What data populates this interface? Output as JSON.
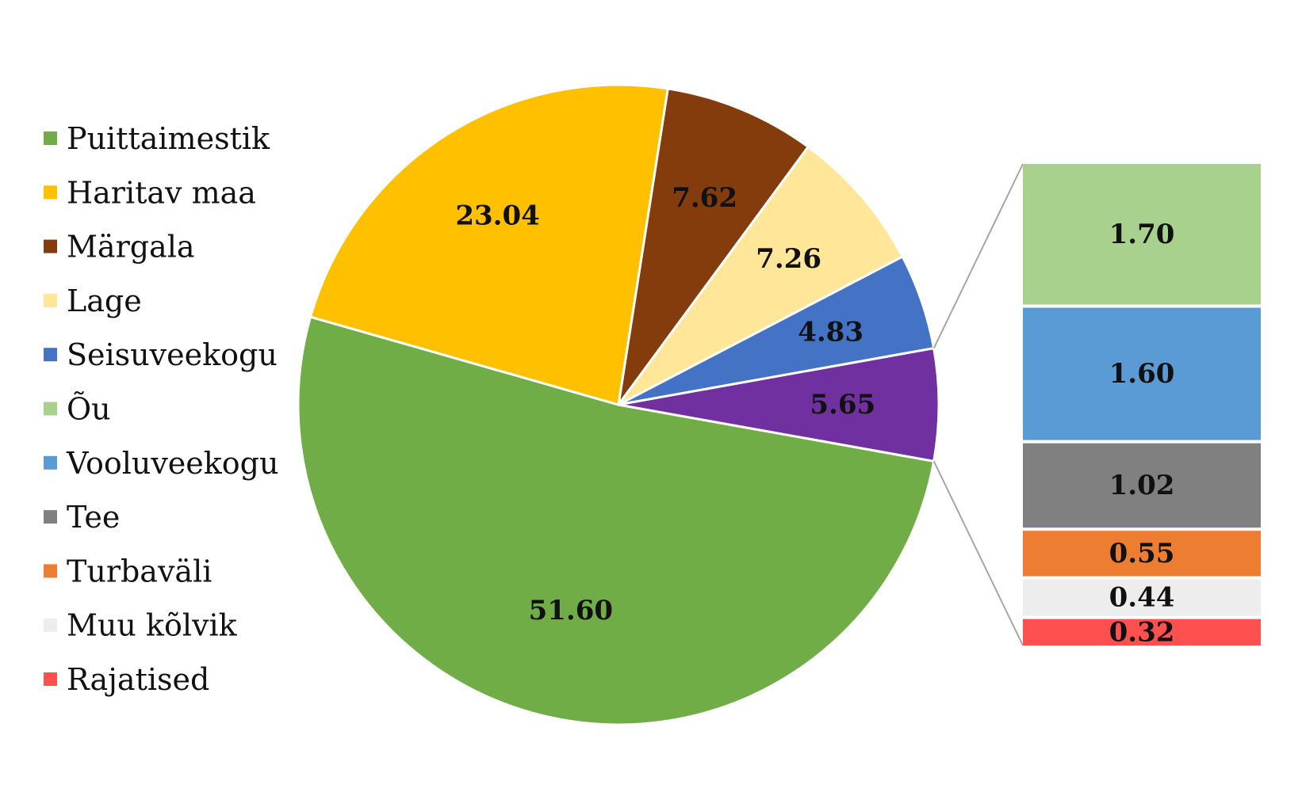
{
  "chart_data": {
    "type": "pie",
    "subtype": "bar-of-pie",
    "legend_position": "left",
    "slices": [
      {
        "label": "Puittaimestik",
        "value": 51.6,
        "display": "51.60",
        "color": "#70AD47"
      },
      {
        "label": "Haritav maa",
        "value": 23.04,
        "display": "23.04",
        "color": "#FFC000"
      },
      {
        "label": "Märgala",
        "value": 7.62,
        "display": "7.62",
        "color": "#843C0C"
      },
      {
        "label": "Lage",
        "value": 7.26,
        "display": "7.26",
        "color": "#FFE699"
      },
      {
        "label": "Seisuveekogu",
        "value": 4.83,
        "display": "4.83",
        "color": "#4472C4"
      }
    ],
    "other_slice": {
      "value": 5.65,
      "display": "5.65",
      "color": "#7030A0"
    },
    "bar_segments": [
      {
        "label": "Õu",
        "value": 1.7,
        "display": "1.70",
        "color": "#A9D18E"
      },
      {
        "label": "Vooluveekogu",
        "value": 1.6,
        "display": "1.60",
        "color": "#5B9BD5"
      },
      {
        "label": "Tee",
        "value": 1.02,
        "display": "1.02",
        "color": "#808080"
      },
      {
        "label": "Turbaväli",
        "value": 0.55,
        "display": "0.55",
        "color": "#ED7D31"
      },
      {
        "label": "Muu kõlvik",
        "value": 0.44,
        "display": "0.44",
        "color": "#EDEDED"
      },
      {
        "label": "Rajatised",
        "value": 0.32,
        "display": "0.32",
        "color": "#FF5050"
      }
    ],
    "legend": [
      {
        "label": "Puittaimestik",
        "color": "#70AD47"
      },
      {
        "label": "Haritav maa",
        "color": "#FFC000"
      },
      {
        "label": "Märgala",
        "color": "#843C0C"
      },
      {
        "label": "Lage",
        "color": "#FFE699"
      },
      {
        "label": "Seisuveekogu",
        "color": "#4472C4"
      },
      {
        "label": "Õu",
        "color": "#A9D18E"
      },
      {
        "label": "Vooluveekogu",
        "color": "#5B9BD5"
      },
      {
        "label": "Tee",
        "color": "#808080"
      },
      {
        "label": "Turbaväli",
        "color": "#ED7D31"
      },
      {
        "label": "Muu kõlvik",
        "color": "#EDEDED"
      },
      {
        "label": "Rajatised",
        "color": "#FF5050"
      }
    ]
  }
}
